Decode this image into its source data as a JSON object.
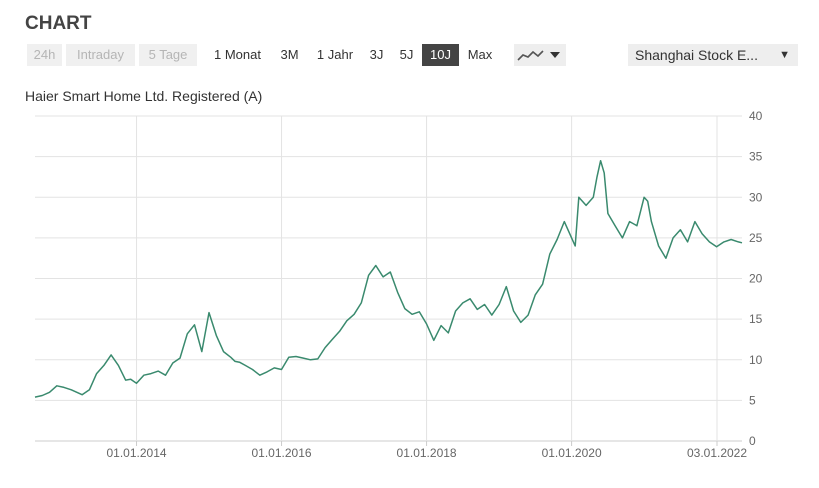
{
  "header": {
    "title": "CHART"
  },
  "toolbar": {
    "ranges": [
      {
        "label": "24h",
        "state": "disabled"
      },
      {
        "label": "Intraday",
        "state": "disabled"
      },
      {
        "label": "5 Tage",
        "state": "disabled"
      },
      {
        "label": "1 Monat",
        "state": "normal"
      },
      {
        "label": "3M",
        "state": "normal"
      },
      {
        "label": "1 Jahr",
        "state": "normal"
      },
      {
        "label": "3J",
        "state": "normal"
      },
      {
        "label": "5J",
        "state": "normal"
      },
      {
        "label": "10J",
        "state": "active"
      },
      {
        "label": "Max",
        "state": "normal"
      }
    ],
    "chart_type_icon": "line-chart-icon",
    "exchange": {
      "selected": "Shanghai Stock E..."
    }
  },
  "colors": {
    "line": "#3a8a6e",
    "grid": "#e3e3e3",
    "active_button": "#444444"
  },
  "chart_data": {
    "type": "line",
    "title": "Haier Smart Home Ltd. Registered (A)",
    "xlabel": "",
    "ylabel": "",
    "ylim": [
      0,
      40
    ],
    "y_ticks": [
      0,
      5,
      10,
      15,
      20,
      25,
      30,
      35,
      40
    ],
    "x_ticks": [
      "01.01.2014",
      "01.01.2016",
      "01.01.2018",
      "01.01.2020",
      "03.01.2022"
    ],
    "x_axis_range": [
      2012.6,
      2022.35
    ],
    "grid": true,
    "series": [
      {
        "x": [
          2012.6,
          2012.7,
          2012.8,
          2012.9,
          2013.0,
          2013.1,
          2013.25,
          2013.35,
          2013.45,
          2013.55,
          2013.65,
          2013.75,
          2013.85,
          2013.92,
          2014.0,
          2014.1,
          2014.2,
          2014.3,
          2014.4,
          2014.5,
          2014.6,
          2014.7,
          2014.8,
          2014.9,
          2015.0,
          2015.1,
          2015.2,
          2015.3,
          2015.36,
          2015.42,
          2015.5,
          2015.6,
          2015.7,
          2015.8,
          2015.9,
          2016.0,
          2016.1,
          2016.2,
          2016.3,
          2016.4,
          2016.5,
          2016.6,
          2016.7,
          2016.8,
          2016.9,
          2017.0,
          2017.1,
          2017.2,
          2017.3,
          2017.4,
          2017.5,
          2017.6,
          2017.7,
          2017.8,
          2017.9,
          2018.0,
          2018.1,
          2018.2,
          2018.3,
          2018.4,
          2018.5,
          2018.6,
          2018.7,
          2018.8,
          2018.9,
          2019.0,
          2019.1,
          2019.2,
          2019.3,
          2019.4,
          2019.5,
          2019.6,
          2019.7,
          2019.8,
          2019.9,
          2020.0,
          2020.05,
          2020.1,
          2020.2,
          2020.3,
          2020.35,
          2020.4,
          2020.45,
          2020.5,
          2020.6,
          2020.7,
          2020.8,
          2020.9,
          2021.0,
          2021.05,
          2021.1,
          2021.2,
          2021.3,
          2021.4,
          2021.5,
          2021.6,
          2021.7,
          2021.8,
          2021.9,
          2022.0,
          2022.1,
          2022.2,
          2022.3,
          2022.35
        ],
        "y": [
          5.4,
          5.6,
          6.0,
          6.8,
          6.6,
          6.3,
          5.7,
          6.3,
          8.3,
          9.3,
          10.6,
          9.3,
          7.5,
          7.6,
          7.1,
          8.1,
          8.3,
          8.6,
          8.1,
          9.6,
          10.2,
          13.2,
          14.3,
          11.0,
          15.8,
          13.0,
          11.0,
          10.3,
          9.8,
          9.7,
          9.3,
          8.8,
          8.1,
          8.5,
          9.0,
          8.8,
          10.3,
          10.4,
          10.2,
          10.0,
          10.1,
          11.5,
          12.5,
          13.5,
          14.8,
          15.6,
          17.0,
          20.4,
          21.6,
          20.2,
          20.8,
          18.3,
          16.3,
          15.6,
          15.9,
          14.4,
          12.4,
          14.2,
          13.3,
          16.0,
          17.0,
          17.5,
          16.2,
          16.8,
          15.5,
          16.8,
          19.0,
          16.0,
          14.6,
          15.5,
          18.0,
          19.3,
          23.0,
          24.8,
          27.0,
          25.0,
          24.0,
          30.0,
          29.0,
          30.0,
          32.5,
          34.5,
          33.0,
          28.0,
          26.5,
          25.0,
          27.0,
          26.5,
          30.0,
          29.5,
          27.0,
          24.0,
          22.5,
          25.0,
          26.0,
          24.5,
          27.0,
          25.5,
          24.5,
          23.9,
          24.5,
          24.8,
          24.5,
          24.4
        ]
      }
    ]
  }
}
